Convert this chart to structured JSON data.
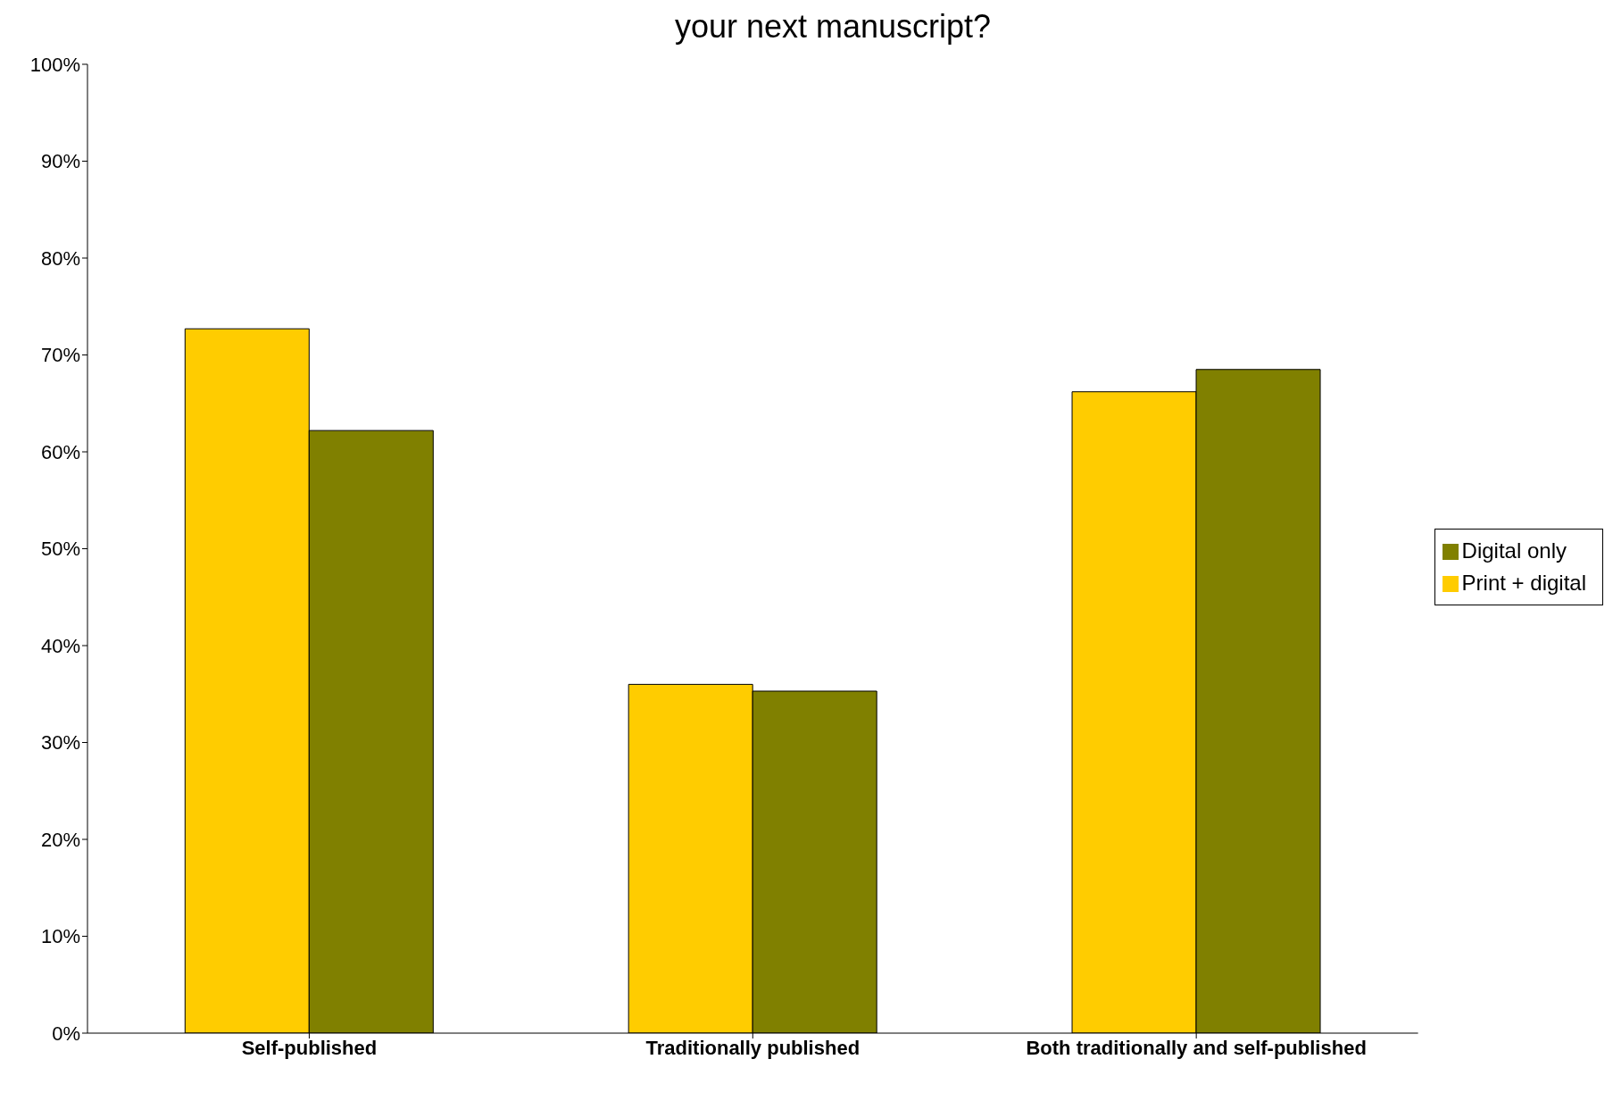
{
  "chart_data": {
    "type": "bar",
    "title": "your next manuscript?",
    "categories": [
      "Self-published",
      "Traditionally published",
      "Both traditionally and self-published"
    ],
    "series": [
      {
        "name": "Print + digital",
        "color": "#ffcc00",
        "values": [
          72.7,
          36.0,
          66.2
        ]
      },
      {
        "name": "Digital only",
        "color": "#808000",
        "values": [
          62.2,
          35.3,
          68.5
        ]
      }
    ],
    "ylim": [
      0,
      100
    ],
    "yticks": [
      {
        "value": 0,
        "label": "0%"
      },
      {
        "value": 10,
        "label": "10%"
      },
      {
        "value": 20,
        "label": "20%"
      },
      {
        "value": 30,
        "label": "30%"
      },
      {
        "value": 40,
        "label": "40%"
      },
      {
        "value": 50,
        "label": "50%"
      },
      {
        "value": 60,
        "label": "60%"
      },
      {
        "value": 70,
        "label": "70%"
      },
      {
        "value": 80,
        "label": "80%"
      },
      {
        "value": 90,
        "label": "90%"
      },
      {
        "value": 100,
        "label": "100%"
      }
    ],
    "grid": false,
    "legend": "right"
  }
}
